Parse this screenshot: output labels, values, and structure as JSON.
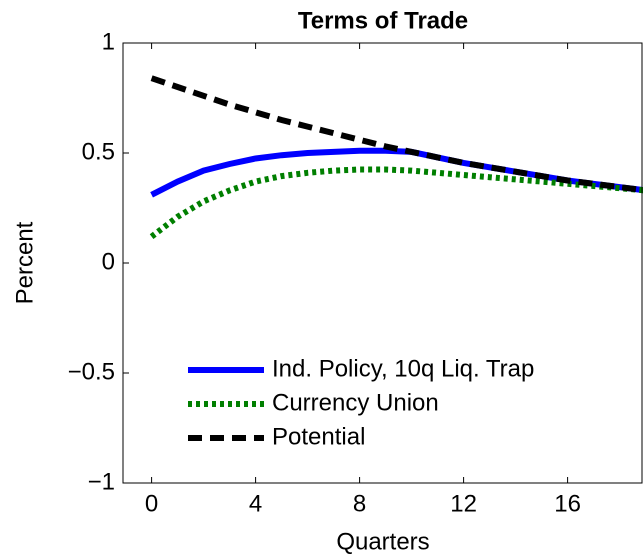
{
  "chart_data": {
    "type": "line",
    "title": "Terms of Trade",
    "xlabel": "Quarters",
    "ylabel": "Percent",
    "x": [
      0,
      1,
      2,
      3,
      4,
      5,
      6,
      7,
      8,
      9,
      10,
      11,
      12,
      13,
      14,
      15,
      16,
      17,
      18,
      19
    ],
    "series": [
      {
        "name": "Ind. Policy, 10q Liq. Trap",
        "color": "#0000ff",
        "style": "solid",
        "values": [
          0.31,
          0.37,
          0.42,
          0.45,
          0.475,
          0.49,
          0.5,
          0.505,
          0.51,
          0.51,
          0.505,
          0.48,
          0.455,
          0.435,
          0.415,
          0.395,
          0.375,
          0.36,
          0.345,
          0.33
        ]
      },
      {
        "name": "Currency Union",
        "color": "#007f00",
        "style": "dotted",
        "values": [
          0.12,
          0.21,
          0.28,
          0.33,
          0.37,
          0.395,
          0.41,
          0.42,
          0.425,
          0.425,
          0.42,
          0.41,
          0.4,
          0.39,
          0.38,
          0.37,
          0.36,
          0.35,
          0.34,
          0.33
        ]
      },
      {
        "name": "Potential",
        "color": "#000000",
        "style": "dashed",
        "values": [
          0.84,
          0.8,
          0.76,
          0.72,
          0.685,
          0.65,
          0.62,
          0.59,
          0.56,
          0.53,
          0.505,
          0.48,
          0.455,
          0.435,
          0.415,
          0.395,
          0.375,
          0.36,
          0.345,
          0.33
        ]
      }
    ],
    "xlim": [
      -1.1,
      18.9
    ],
    "ylim": [
      -1,
      1
    ],
    "xticks": [
      0,
      4,
      8,
      12,
      16
    ],
    "yticks": [
      {
        "value": -1,
        "label": "−1"
      },
      {
        "value": -0.5,
        "label": "−0.5"
      },
      0,
      0.5,
      1
    ],
    "legend": "lower left"
  }
}
